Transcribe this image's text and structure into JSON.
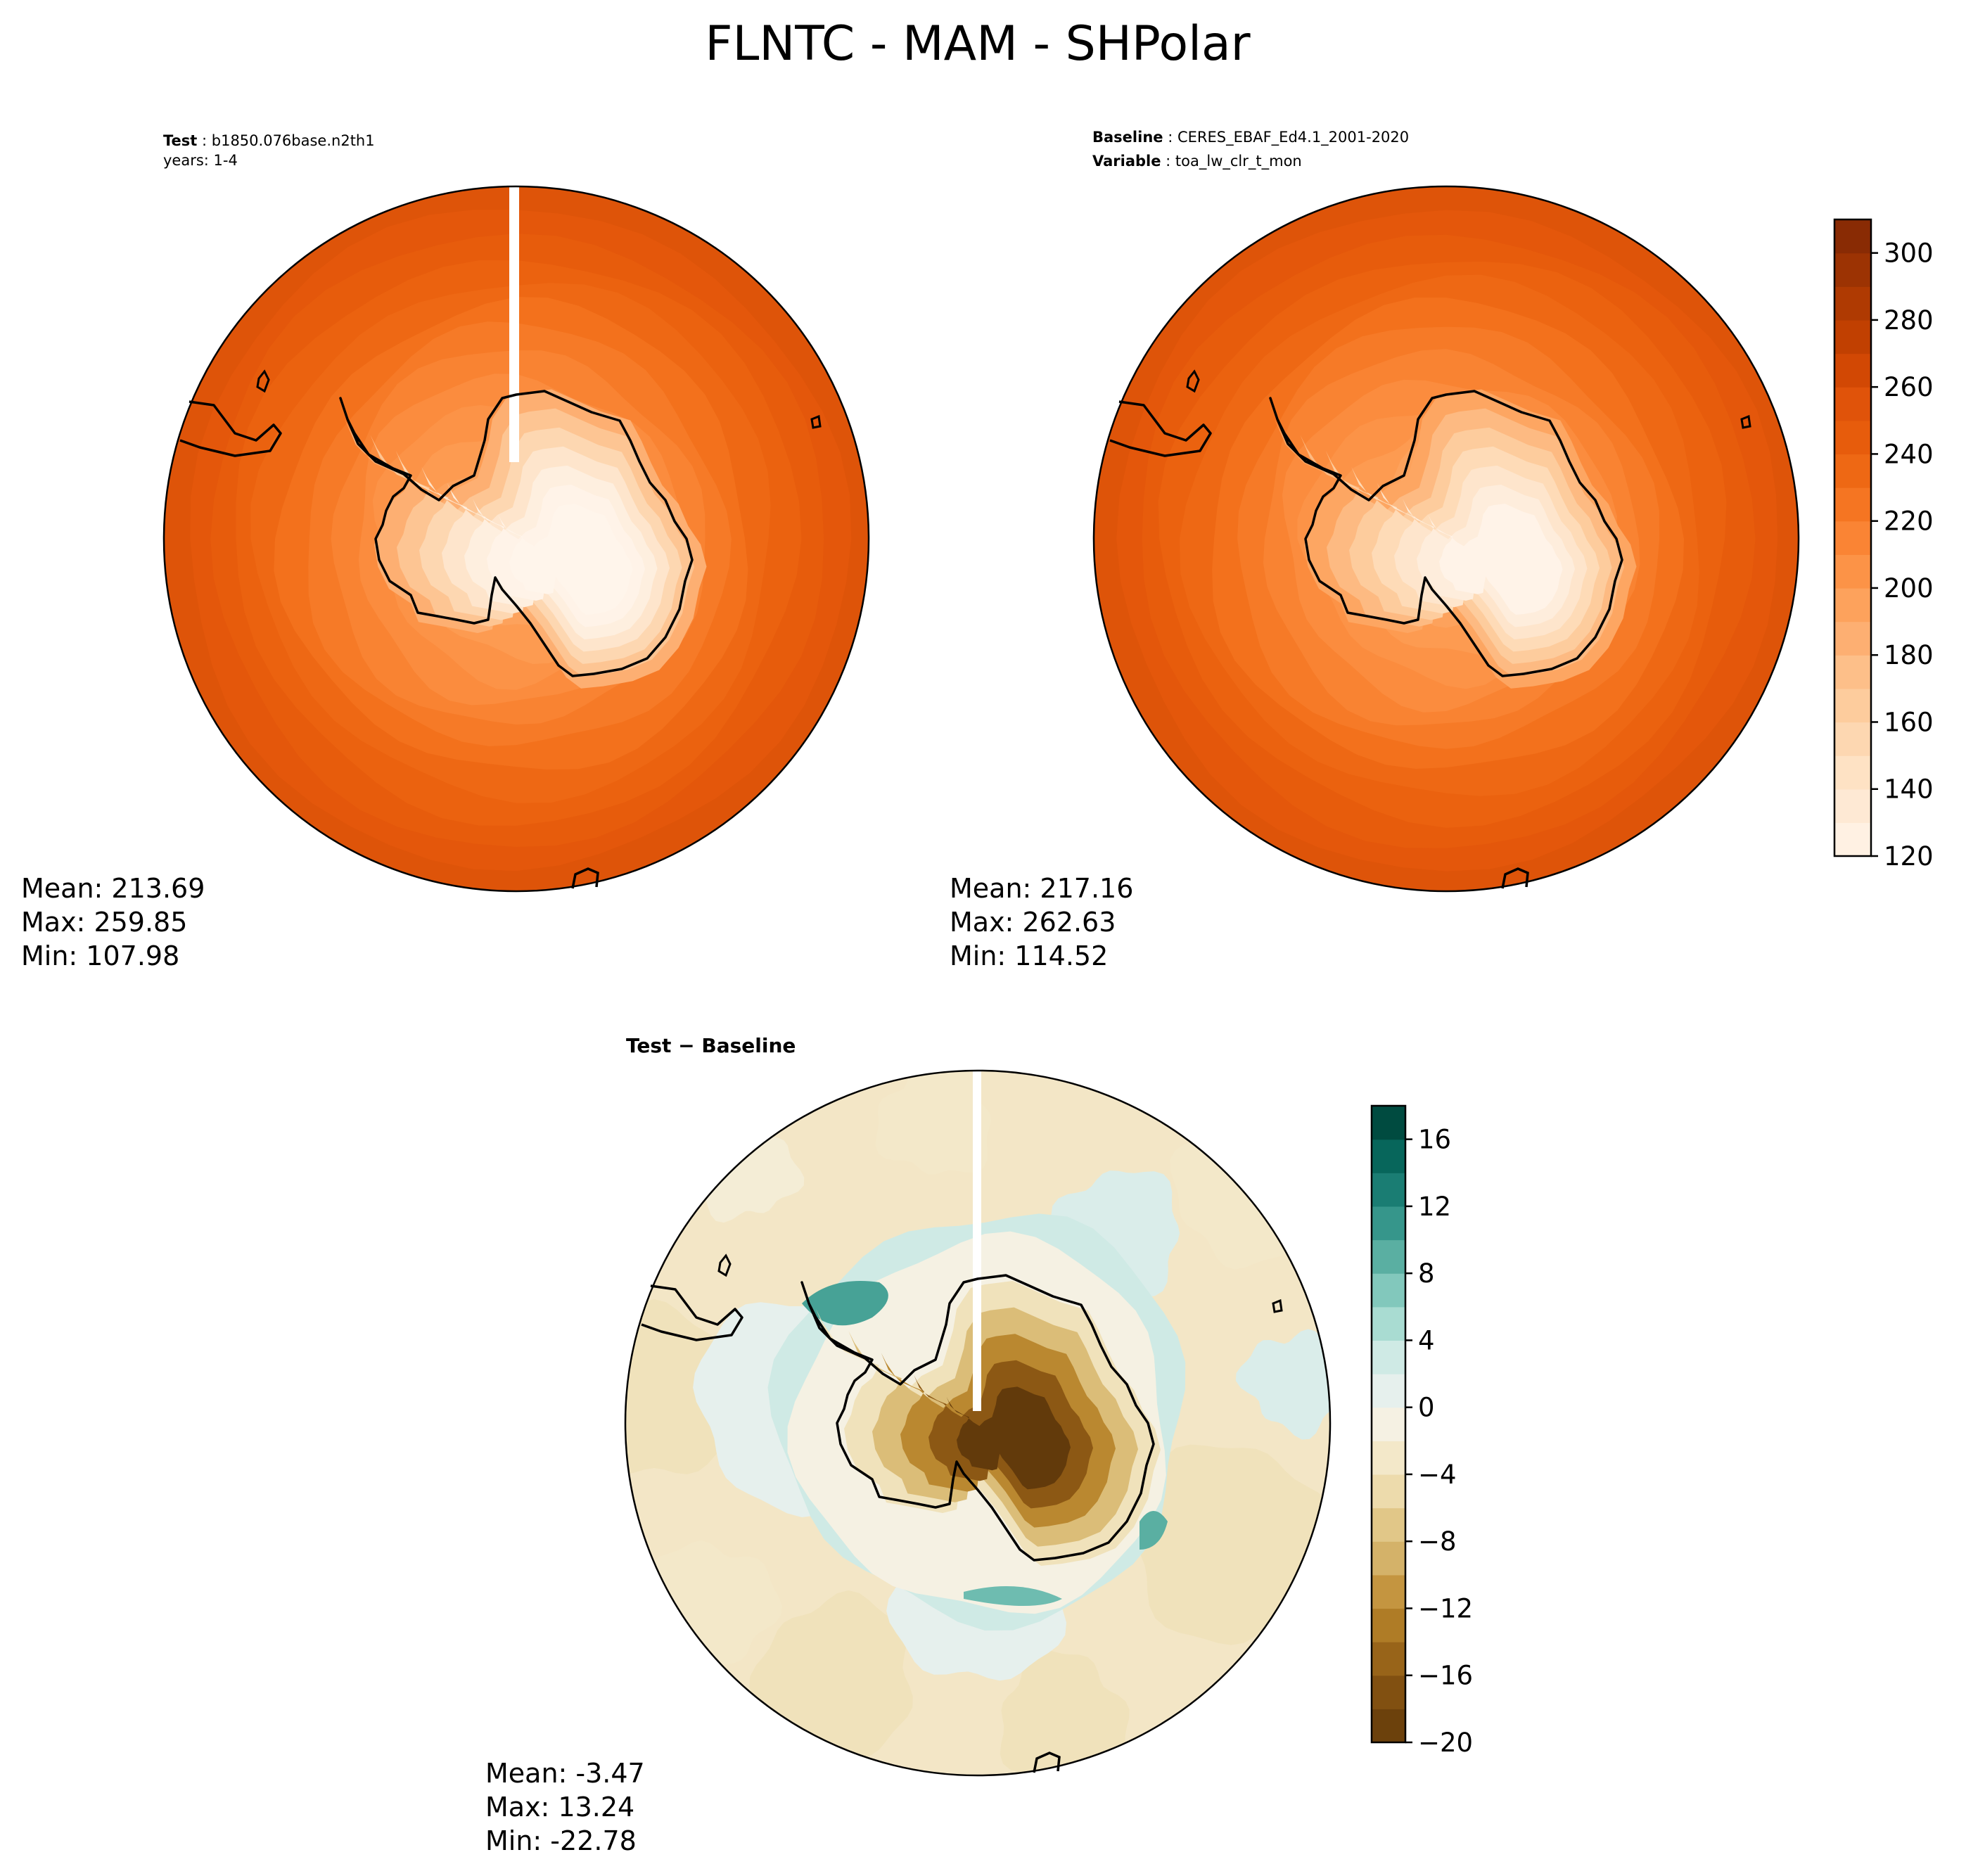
{
  "title": "FLNTC - MAM - SHPolar",
  "chart_data": [
    {
      "type": "heatmap",
      "projection": "south polar stereographic",
      "header": {
        "line1_bold": "Test",
        "line1_rest": " : b1850.076base.n2th1",
        "line2": "years: 1-4"
      },
      "stats": {
        "mean": "Mean: 213.69",
        "max": "Max: 259.85",
        "min": "Min: 107.98"
      },
      "summary": {
        "mean": 213.69,
        "max": 259.85,
        "min": 107.98
      },
      "contour_levels_approx": [
        130,
        145,
        160,
        175,
        190,
        200,
        210,
        220,
        230,
        240,
        250,
        260
      ]
    },
    {
      "type": "heatmap",
      "projection": "south polar stereographic",
      "header": {
        "line1_bold": "Baseline",
        "line1_rest": " : CERES_EBAF_Ed4.1_2001-2020",
        "line2_bold": "Variable",
        "line2_rest": " : toa_lw_clr_t_mon"
      },
      "stats": {
        "mean": "Mean: 217.16",
        "max": "Max: 262.63",
        "min": "Min: 114.52"
      },
      "summary": {
        "mean": 217.16,
        "max": 262.63,
        "min": 114.52
      },
      "colorbar": {
        "colormap": "Oranges",
        "range": [
          120,
          310
        ],
        "ticks": [
          "120",
          "140",
          "160",
          "180",
          "200",
          "220",
          "240",
          "260",
          "280",
          "300"
        ]
      }
    },
    {
      "type": "heatmap",
      "projection": "south polar stereographic",
      "header": {
        "line1_bold": "Test − Baseline"
      },
      "stats": {
        "mean": "Mean: -3.47",
        "max": "Max: 13.24",
        "min": "Min: -22.78"
      },
      "summary": {
        "mean": -3.47,
        "max": 13.24,
        "min": -22.78
      },
      "colorbar": {
        "colormap": "BrBG",
        "range": [
          -20,
          18
        ],
        "ticks": [
          "−20",
          "−16",
          "−12",
          "−8",
          "−4",
          "0",
          "4",
          "8",
          "12",
          "16"
        ]
      }
    }
  ],
  "colors": {
    "oranges": [
      "#fff5eb",
      "#feead6",
      "#fee0c1",
      "#fdd1a5",
      "#fdc08b",
      "#fdab6b",
      "#fd994e",
      "#fa8434",
      "#f3701b",
      "#e95f0d",
      "#e0520a",
      "#cc4401",
      "#b33b02",
      "#993203",
      "#7f2704"
    ],
    "brbg_ticks": [
      "#623a0b",
      "#77480e",
      "#8e5a15",
      "#a8741f",
      "#bf8d34",
      "#d1ad62",
      "#dfc482",
      "#ecd9a9",
      "#f3e8c8",
      "#f5f1e3",
      "#e5f0ee",
      "#cce9e4",
      "#a3d9cf",
      "#79c3b7",
      "#4fa89b",
      "#2a8d84",
      "#107369",
      "#015c51",
      "#003c30"
    ]
  }
}
